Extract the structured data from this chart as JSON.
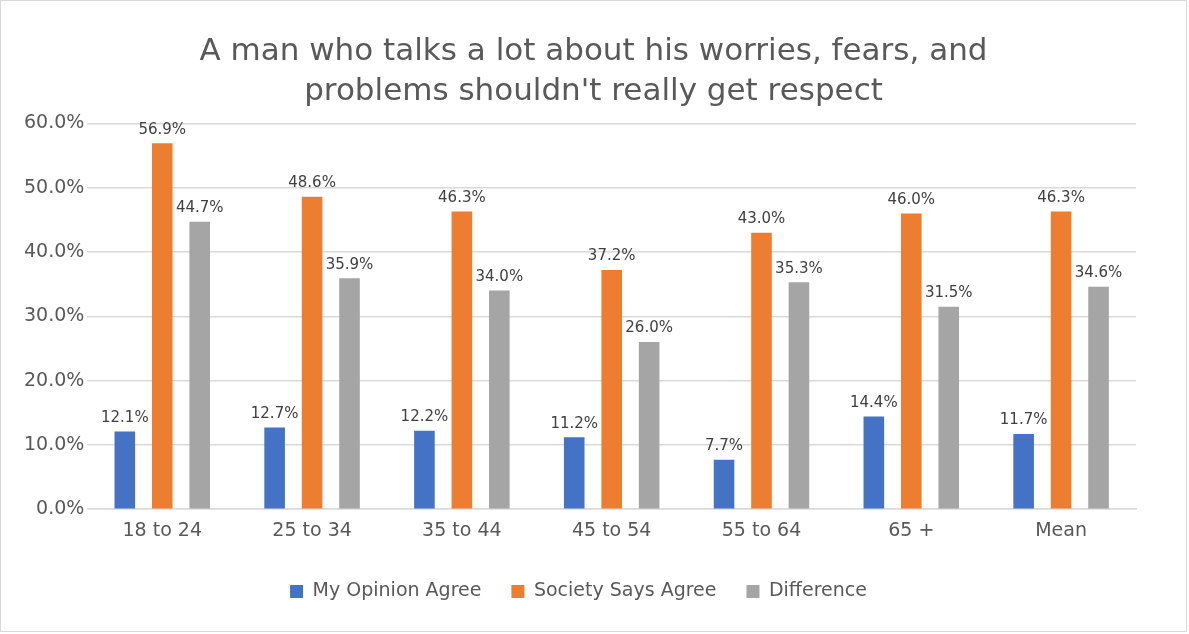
{
  "chart_data": {
    "type": "bar",
    "title": "A man who talks a lot about his worries, fears, and problems shouldn't really get respect",
    "categories": [
      "18 to 24",
      "25 to 34",
      "35 to 44",
      "45 to 54",
      "55 to 64",
      "65 +",
      "Mean"
    ],
    "series": [
      {
        "name": "My Opinion Agree",
        "color": "#4472c4",
        "values": [
          12.1,
          12.7,
          12.2,
          11.2,
          7.7,
          14.4,
          11.7
        ],
        "value_labels": [
          "12.1%",
          "12.7%",
          "12.2%",
          "11.2%",
          "7.7%",
          "14.4%",
          "11.7%"
        ]
      },
      {
        "name": "Society Says Agree",
        "color": "#ed7d31",
        "values": [
          56.9,
          48.6,
          46.3,
          37.2,
          43.0,
          46.0,
          46.3
        ],
        "value_labels": [
          "56.9%",
          "48.6%",
          "46.3%",
          "37.2%",
          "43.0%",
          "46.0%",
          "46.3%"
        ]
      },
      {
        "name": "Difference",
        "color": "#a5a5a5",
        "values": [
          44.7,
          35.9,
          34.0,
          26.0,
          35.3,
          31.5,
          34.6
        ],
        "value_labels": [
          "44.7%",
          "35.9%",
          "34.0%",
          "26.0%",
          "35.3%",
          "31.5%",
          "34.6%"
        ]
      }
    ],
    "ylim": [
      0,
      60
    ],
    "yticks": [
      {
        "value": 0,
        "label": "0.0%"
      },
      {
        "value": 10,
        "label": "10.0%"
      },
      {
        "value": 20,
        "label": "20.0%"
      },
      {
        "value": 30,
        "label": "30.0%"
      },
      {
        "value": 40,
        "label": "40.0%"
      },
      {
        "value": 50,
        "label": "50.0%"
      },
      {
        "value": 60,
        "label": "60.0%"
      }
    ],
    "grid": "y",
    "legend": "bottom"
  }
}
